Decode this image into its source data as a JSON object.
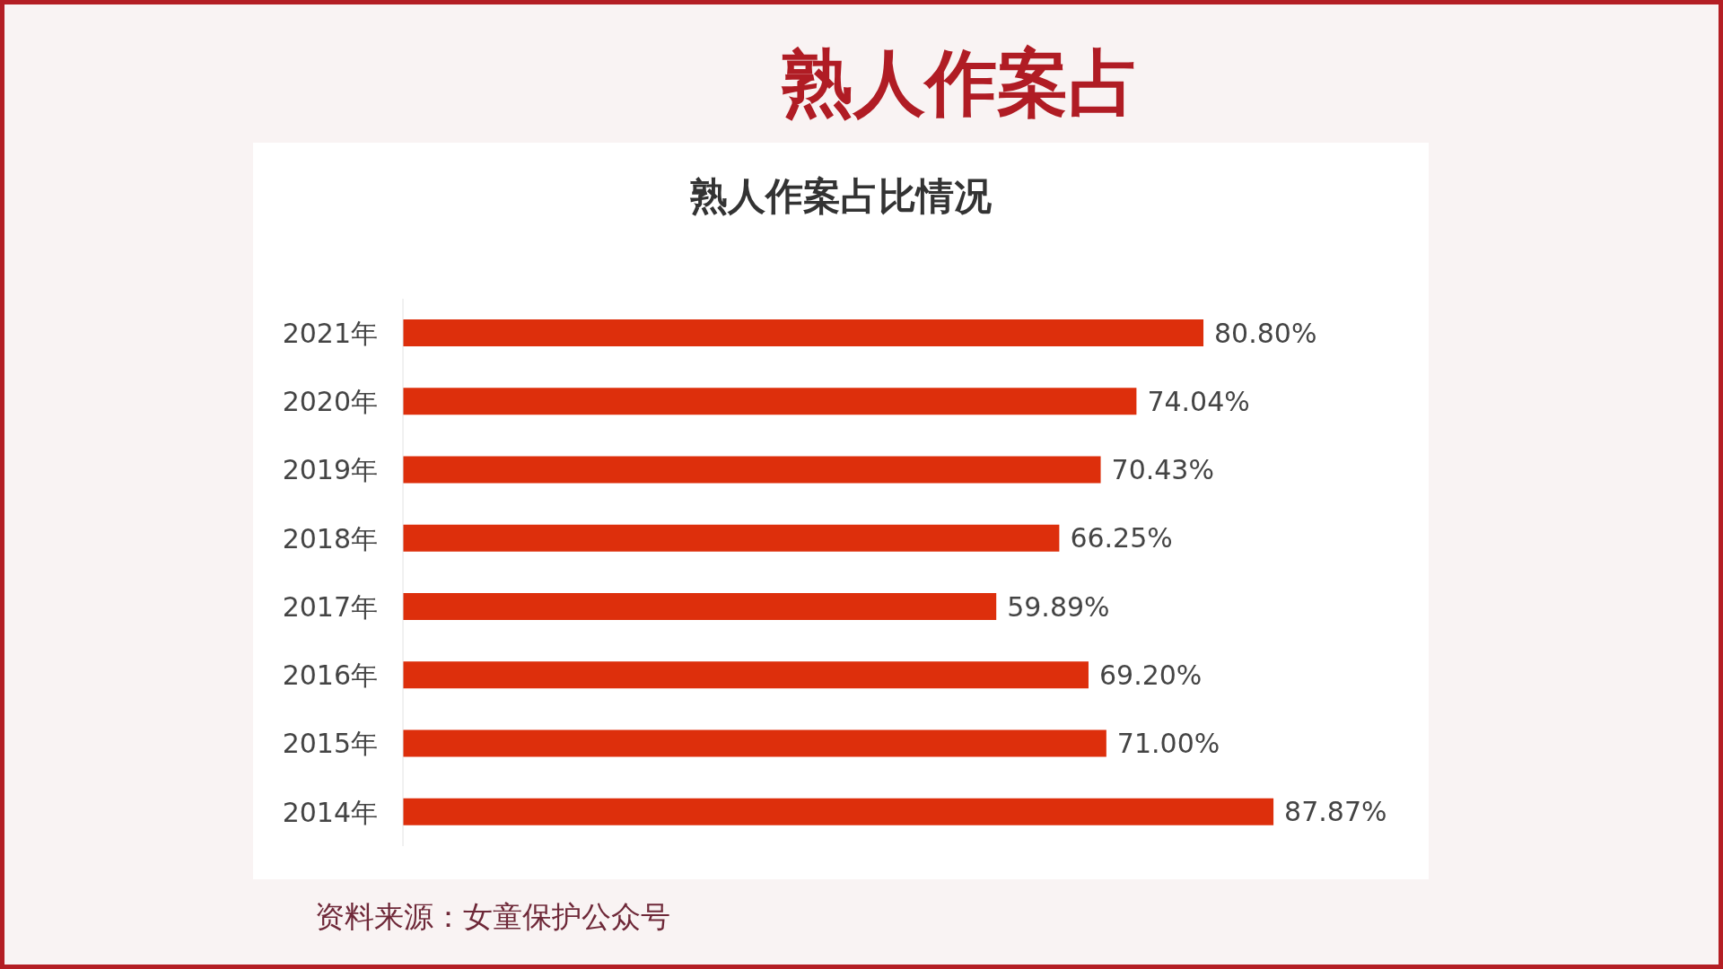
{
  "chart_data": {
    "type": "bar",
    "orientation": "horizontal",
    "title": "熟人作案占比情况",
    "categories": [
      "2021年",
      "2020年",
      "2019年",
      "2018年",
      "2017年",
      "2016年",
      "2015年",
      "2014年"
    ],
    "values": [
      80.8,
      74.04,
      70.43,
      66.25,
      59.89,
      69.2,
      71.0,
      87.87
    ],
    "value_labels": [
      "80.80%",
      "74.04%",
      "70.43%",
      "66.25%",
      "59.89%",
      "69.20%",
      "71.00%",
      "87.87%"
    ],
    "color": "#dd2f0c",
    "annotations": [
      "熟人作案占",
      "资料来源：女童保护公众号"
    ]
  }
}
